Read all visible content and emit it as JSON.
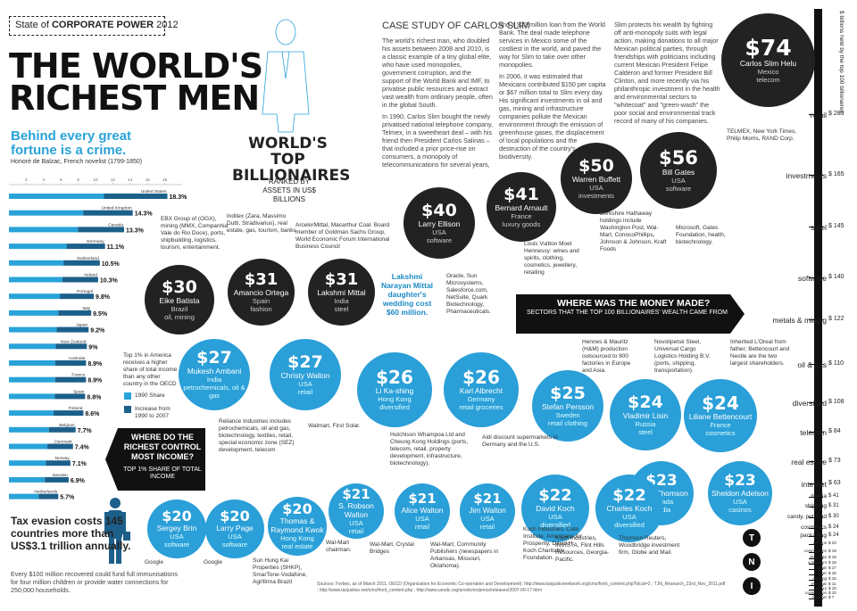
{
  "header": {
    "sotc_pre": "State of",
    "sotc_bold": "CORPORATE POWER",
    "sotc_year": "2012"
  },
  "main_title_1": "THE WORLD'S",
  "main_title_2": "RICHEST MEN",
  "tagline": "Behind every great fortune is a crime.",
  "quote_author": "Honoré de Balzac, French novelist (1799-1850)",
  "billionaires_title_1": "WORLD'S TOP",
  "billionaires_title_2": "BILLIONAIRES",
  "billionaires_subtitle": "RANKED BY ASSETS IN US$ BILLIONS",
  "case_study": {
    "heading": "CASE STUDY OF CARLOS SLIM",
    "col1": "The world's richest man, who doubled his assets between 2008 and 2010, is a classic example of a tiny global elite, who have used monopolies, government corruption, and the support of the World Bank and IMF, to privatise public resources and extract vast wealth from ordinary people, often in the global South.",
    "col1b": "In 1990, Carlos Slim bought the newly privatised national telephone company, Telmex, in a sweetheart deal – with his friend then President Carlos Salinas – that included a prior price-rise on consumers, a monopoly of telecommunications for several years,",
    "col2": "and a $22 million loan from the World Bank. The deal made telephone services in Mexico some of the costliest in the world, and paved the way for Slim to take over other monopolies.",
    "col2b": "In 2006, it was estimated that Mexicans contributed $150 per capita or $67 million total to Slim every day. His significant investments in oil and gas, mining and infrastructure companies pollute the Mexican environment through the emission of greenhouse gases, the displacement of local populations and the destruction of the country's biodiversity.",
    "col3": "Slim protects his wealth by fighting off anti-monopoly suits with legal action, making donations to all major Mexican political parties, through friendships with politicians including current Mexican President Felipe Calderon and former President Bill Clinton, and more recently via his philanthropic investment in the health and environmental sectors to \"whitecoat\" and \"green-wash\" the poor social and environmental track record of many of his companies."
  },
  "income_chart": {
    "title": "WHERE DO THE RICHEST CONTROL MOST INCOME?",
    "subtitle": "TOP 1% SHARE OF TOTAL INCOME",
    "legend_1990": "1990 Share",
    "legend_incr": "Increase from 1990 to 2007",
    "note": "Top 1% in America receives a higher share of total income than any other country in the OECD",
    "colors": {
      "share1990": "#29a3d9",
      "increase": "#1c5f8a"
    }
  },
  "chart_data": {
    "type": "bar",
    "categories": [
      "United States",
      "United Kingdom",
      "Canada",
      "Germany",
      "Switzerland",
      "Ireland",
      "Portugal",
      "Italy",
      "Japan",
      "New Zealand",
      "Australia",
      "France",
      "Spain",
      "Finland",
      "Belgium",
      "Denmark",
      "Norway",
      "Sweden",
      "Netherlands"
    ],
    "values": [
      18.3,
      14.3,
      13.3,
      11.1,
      10.5,
      10.3,
      9.8,
      9.5,
      9.2,
      9,
      8.9,
      8.9,
      8.8,
      8.6,
      7.7,
      7.4,
      7.1,
      6.9,
      5.7
    ],
    "labels": [
      "18.3%",
      "14.3%",
      "13.3%",
      "11.1%",
      "10.5%",
      "10.3%",
      "9.8%",
      "9.5%",
      "9.2%",
      "9%",
      "8.9%",
      "8.9%",
      "8.8%",
      "8.6%",
      "7.7%",
      "7.4%",
      "7.1%",
      "6.9%",
      "5.7%"
    ],
    "x_ticks": [
      "2",
      "4",
      "6",
      "8",
      "10",
      "12",
      "14",
      "16",
      "18"
    ],
    "xlim": [
      0,
      20
    ]
  },
  "tax": {
    "headline": "Tax evasion costs 145 countries more than US$3.1 trillion annually.",
    "text": "Every $100 million recovered could fund full immunisations for four million children or provide water connections for 250,000 households."
  },
  "money_banner": {
    "title": "WHERE WAS THE MONEY MADE?",
    "subtitle": "SECTORS THAT THE TOP 100 BILLIONAIRES' WEALTH CAME FROM"
  },
  "billionaires": [
    {
      "amt": "$74",
      "name": "Carlos Slim Helu",
      "country": "Mexico",
      "sector": "telecom",
      "style": "dark"
    },
    {
      "amt": "$56",
      "name": "Bill Gates",
      "country": "USA",
      "sector": "software",
      "style": "dark"
    },
    {
      "amt": "$50",
      "name": "Warren Buffett",
      "country": "USA",
      "sector": "investments",
      "style": "dark"
    },
    {
      "amt": "$41",
      "name": "Bernard Arnault",
      "country": "France",
      "sector": "luxury goods",
      "style": "dark"
    },
    {
      "amt": "$40",
      "name": "Larry Ellison",
      "country": "USA",
      "sector": "software",
      "style": "dark"
    },
    {
      "amt": "$31",
      "name": "Lakshmi Mittal",
      "country": "India",
      "sector": "steel",
      "style": "dark"
    },
    {
      "amt": "$31",
      "name": "Amancio Ortega",
      "country": "Spain",
      "sector": "fashion",
      "style": "dark"
    },
    {
      "amt": "$30",
      "name": "Eike Batista",
      "country": "Brazil",
      "sector": "oil, mining",
      "style": "dark"
    },
    {
      "amt": "$27",
      "name": "Mukesh Ambani",
      "country": "India",
      "sector": "petrochemicals, oil & gas",
      "style": "blue"
    },
    {
      "amt": "$27",
      "name": "Christy Walton",
      "country": "USA",
      "sector": "retail",
      "style": "blue"
    },
    {
      "amt": "$26",
      "name": "Li Ka-shing",
      "country": "Hong Kong",
      "sector": "diversified",
      "style": "blue"
    },
    {
      "amt": "$26",
      "name": "Karl Albrecht",
      "country": "Germany",
      "sector": "retail groceries",
      "style": "blue"
    },
    {
      "amt": "$25",
      "name": "Stefan Persson",
      "country": "Sweden",
      "sector": "retail clothing",
      "style": "blue"
    },
    {
      "amt": "$24",
      "name": "Vladimir Lisin",
      "country": "Russia",
      "sector": "steel",
      "style": "blue"
    },
    {
      "amt": "$24",
      "name": "Liliane Bettencourt",
      "country": "France",
      "sector": "cosmetics",
      "style": "blue"
    },
    {
      "amt": "$23",
      "name": "David Thomson",
      "country": "Canada",
      "sector": "media",
      "style": "blue"
    },
    {
      "amt": "$23",
      "name": "Sheldon Adelson",
      "country": "USA",
      "sector": "casinos",
      "style": "blue"
    },
    {
      "amt": "$22",
      "name": "David Koch",
      "country": "USA",
      "sector": "diversified",
      "style": "blue"
    },
    {
      "amt": "$22",
      "name": "Charles Koch",
      "country": "USA",
      "sector": "diversified",
      "style": "blue"
    },
    {
      "amt": "$21",
      "name": "Jim Walton",
      "country": "USA",
      "sector": "retail",
      "style": "blue"
    },
    {
      "amt": "$21",
      "name": "Alice Walton",
      "country": "USA",
      "sector": "retail",
      "style": "blue"
    },
    {
      "amt": "$21",
      "name": "S. Robson Walton",
      "country": "USA",
      "sector": "retail",
      "style": "blue"
    },
    {
      "amt": "$20",
      "name": "Thomas & Raymond Kwok",
      "country": "Hong Kong",
      "sector": "real estate",
      "style": "blue"
    },
    {
      "amt": "$20",
      "name": "Larry Page",
      "country": "USA",
      "sector": "software",
      "style": "blue"
    },
    {
      "amt": "$20",
      "name": "Sergey Brin",
      "country": "USA",
      "sector": "software",
      "style": "blue"
    }
  ],
  "mittal_note": "Lakshmi Narayan Mittal daughter's wedding cost $60 million.",
  "notes": {
    "slim": "TELMEX, New York Times, Philip Morris, RAND Corp.",
    "gates": "Microsoft, Gates Foundation, health, biotechnology.",
    "buffett": "Berkshire Hathaway holdings include Washington Post, Wal-Mart, ConocoPhillips, Johnson & Johnson, Kraft Foods",
    "arnault": "Louis Vuitton Moet Hennessy: wines and spirits, clothing, cosmetics, jewellery, retailing",
    "ellison": "Oracle, Sun Microsystems, Salesforce.com, NetSuite, Quark Biotechnology, Pharmaceuticals.",
    "mittal": "ArcelorMittal, Macarthur Coal. Board member of Goldman Sachs Group, World Economic Forum International Business Council",
    "ortega": "Inditex (Zara, Massimo Dutti, Stradivarius), real estate, gas, tourism, banks",
    "batista": "EBX Group of (OGX), mining (MMX, Companhia Vale do Rio Doce), ports, shipbuilding, logistics, tourism, entertainment.",
    "ambani": "Reliance Industries includes petrochemicals, oil and gas, biotechnology, textiles, retail, special economic zone (SEZ) development, telecom",
    "christy": "Walmart, First Solar.",
    "li": "Hutchison Whampoa Ltd and Cheung Kong Holdings (ports, telecom, retail, property development, infrastructure, biotechnology).",
    "albrecht": "Aldi discount supermarkets in Germany and the U.S.",
    "persson": "Hennes & Mauritz (H&M) production outsourced to 800 factories in Europe and Asia.",
    "lisin": "Novolipetsk Steel, Universal Cargo Logistics Holding B.V. (ports, shipping, transportation).",
    "bettencourt": "Inherited L'Oreal from father; Bettencourt and Nestle are the two largest shareholders.",
    "koch": "Koch Industries, Cato Institute, Americans for Prosperity, David H. Koch Charitable Foundation.",
    "charles": "Koch Industries, INVISTA, Flint Hills Resources, Georgia-Pacific.",
    "thomson": "Thomson Reuters, Woodbridge investment firm, Globe and Mail.",
    "waltons": "Wal-Mart, Community Publishers (newspapers in Arkansas, Missouri, Oklahoma).",
    "alice": "Wal-Mart, Crystal Bridges",
    "robson": "Wal-Mart chairman.",
    "kwok": "Sun Hung Kai Properties (SHKP), SmarTone-Vodafone, Agrifirma Brazil",
    "page": "Google",
    "brin": "Google"
  },
  "sector_axis": {
    "label": "$ billions held by the top 100 billionaires",
    "items": [
      {
        "name": "retail",
        "value": "$ 283"
      },
      {
        "name": "investments",
        "value": "$ 165"
      },
      {
        "name": "steel",
        "value": "$ 145"
      },
      {
        "name": "software",
        "value": "$ 140"
      },
      {
        "name": "metals & mining",
        "value": "$ 122"
      },
      {
        "name": "oil & gas",
        "value": "$ 110"
      },
      {
        "name": "diversified",
        "value": "$ 108"
      },
      {
        "name": "telecom",
        "value": "$ 84"
      },
      {
        "name": "real estate",
        "value": "$ 73"
      },
      {
        "name": "internet",
        "value": "$ 63"
      },
      {
        "name": "media",
        "value": "$ 41"
      },
      {
        "name": "shipping",
        "value": "$ 31"
      },
      {
        "name": "candy, pet food",
        "value": "$ 30"
      },
      {
        "name": "cosmetics",
        "value": "$ 24"
      },
      {
        "name": "packaging",
        "value": "$ 24"
      },
      {
        "name": "casinos",
        "value": "$ 23"
      },
      {
        "name": "commodities",
        "value": "$ 19"
      },
      {
        "name": "chocolate",
        "value": "$ 19"
      },
      {
        "name": "computers",
        "value": "$ 18"
      },
      {
        "name": "sugar",
        "value": "$ 17"
      },
      {
        "name": "beer",
        "value": "$ 16"
      },
      {
        "name": "clothing",
        "value": "$ 15"
      },
      {
        "name": "eyewear",
        "value": "$ 11"
      },
      {
        "name": "luxury",
        "value": "$ 10"
      },
      {
        "name": "construction",
        "value": "$ 10"
      },
      {
        "name": "fertilizer",
        "value": "$ 7"
      }
    ]
  },
  "tni": [
    "T",
    "N",
    "I"
  ],
  "sources": "Sources: Forbes, as of March 2011. OECD (Organization for Economic Co-operation and Development): http://www.taxjusticenetwork.org/cms/front_content.php?idcat=2 ; TJN_Research_23rd_Nov_2011.pdf ; http://www.taxjustice.net/cms/front_content.php ; http://www.unodc.org/unodc/en/press/releases/2007-09-17.html"
}
